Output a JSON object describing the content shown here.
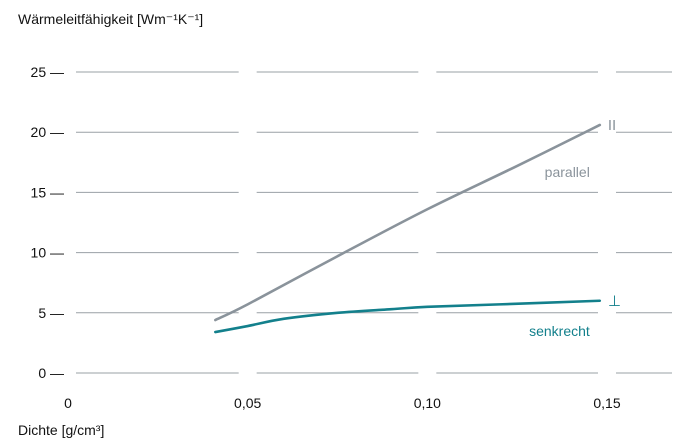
{
  "chart_data": {
    "type": "line",
    "ylabel": "Wärmeleitfähigkeit [Wm⁻¹K⁻¹]",
    "xlabel": "Dichte [g/cm³]",
    "xlim": [
      0,
      0.17
    ],
    "ylim": [
      0,
      25
    ],
    "x_ticks": [
      {
        "value": 0,
        "label": "0"
      },
      {
        "value": 0.05,
        "label": "0,05"
      },
      {
        "value": 0.1,
        "label": "0,10"
      },
      {
        "value": 0.15,
        "label": "0,15"
      }
    ],
    "y_ticks": [
      {
        "value": 0,
        "label": "0 —"
      },
      {
        "value": 5,
        "label": "5 —"
      },
      {
        "value": 10,
        "label": "10 —"
      },
      {
        "value": 15,
        "label": "15 —"
      },
      {
        "value": 20,
        "label": "20 —"
      },
      {
        "value": 25,
        "label": "25 —"
      }
    ],
    "grid": {
      "horizontal": true,
      "vertical_gaps_at_x_ticks": true
    },
    "series": [
      {
        "name": "parallel",
        "symbol": "II",
        "color": "#8a939b",
        "x": [
          0.041,
          0.05,
          0.075,
          0.1,
          0.125,
          0.148
        ],
        "y": [
          4.4,
          5.7,
          9.7,
          13.6,
          17.2,
          20.6
        ]
      },
      {
        "name": "senkrecht",
        "symbol": "⊥",
        "color": "#13808c",
        "x": [
          0.041,
          0.05,
          0.06,
          0.075,
          0.09,
          0.1,
          0.12,
          0.148
        ],
        "y": [
          3.4,
          3.9,
          4.5,
          5.0,
          5.3,
          5.5,
          5.7,
          6.0
        ]
      }
    ]
  }
}
